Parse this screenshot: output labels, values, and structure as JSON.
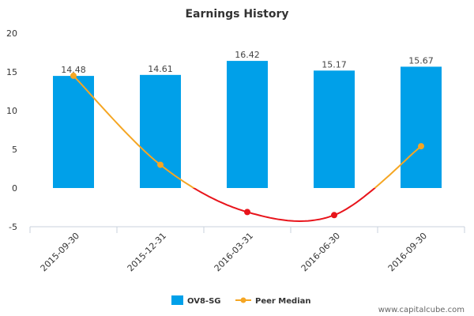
{
  "chart_data": {
    "type": "bar",
    "title": "Earnings History",
    "categories": [
      "2015-09-30",
      "2015-12-31",
      "2016-03-31",
      "2016-06-30",
      "2016-09-30"
    ],
    "series": [
      {
        "name": "OV8-SG",
        "type": "bar",
        "color": "#00a0e9",
        "values": [
          14.48,
          14.61,
          16.42,
          15.17,
          15.67
        ],
        "labels": [
          "14.48",
          "14.61",
          "16.42",
          "15.17",
          "15.67"
        ]
      },
      {
        "name": "Peer Median",
        "type": "line",
        "color": "#f5a623",
        "negative_color": "#e8141b",
        "values": [
          14.5,
          3.0,
          -3.1,
          -3.5,
          5.4
        ]
      }
    ],
    "ylim": [
      -5,
      20
    ],
    "yticks": [
      "-5",
      "0",
      "5",
      "10",
      "15",
      "20"
    ],
    "legend_position": "bottom-center"
  },
  "watermark": "www.capitalcube.com"
}
